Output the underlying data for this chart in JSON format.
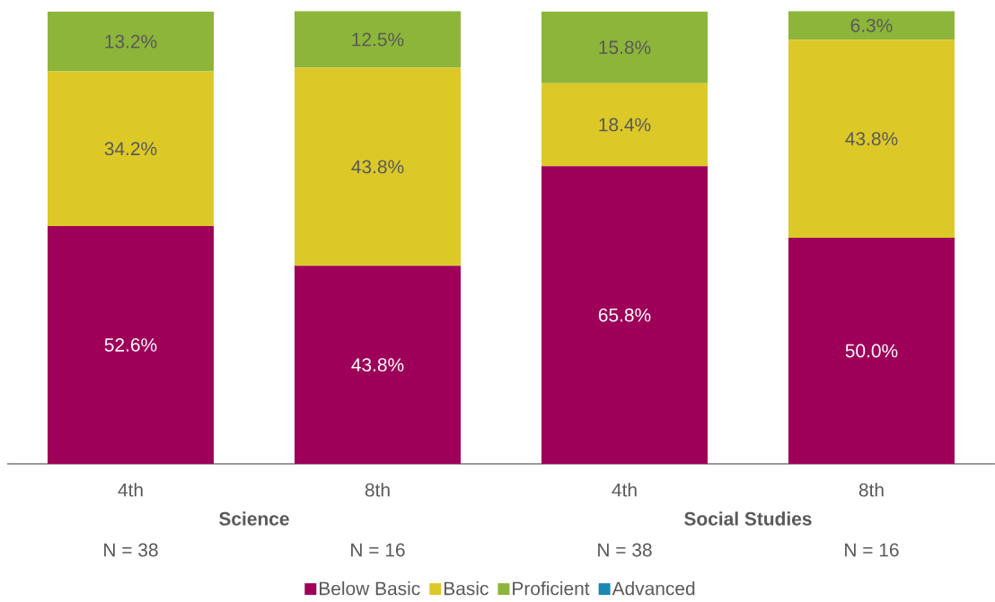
{
  "chart_data": {
    "type": "bar",
    "stacked": true,
    "categories": [
      "4th",
      "8th",
      "4th",
      "8th"
    ],
    "series": [
      {
        "name": "Below Basic",
        "color": "#9e0059",
        "values": [
          52.6,
          43.8,
          65.8,
          50.0
        ],
        "value_labels": [
          "52.6%",
          "43.8%",
          "65.8%",
          "50.0%"
        ]
      },
      {
        "name": "Basic",
        "color": "#dcc927",
        "values": [
          34.2,
          43.8,
          18.4,
          43.8
        ],
        "value_labels": [
          "34.2%",
          "43.8%",
          "18.4%",
          "43.8%"
        ]
      },
      {
        "name": "Proficient",
        "color": "#8db53a",
        "values": [
          13.2,
          12.5,
          15.8,
          6.3
        ],
        "value_labels": [
          "13.2%",
          "12.5%",
          "15.8%",
          "6.3%"
        ]
      },
      {
        "name": "Advanced",
        "color": "#1a87b5",
        "values": [
          0,
          0,
          0,
          0
        ],
        "value_labels": [
          null,
          null,
          null,
          null
        ]
      }
    ],
    "ylim": [
      0,
      100
    ],
    "tick_labels": "x",
    "grid": false,
    "legend": "bottom",
    "annotations": [
      "Science",
      "Social Studies",
      "N = 38",
      "N = 16",
      "N = 38",
      "N = 16"
    ]
  }
}
